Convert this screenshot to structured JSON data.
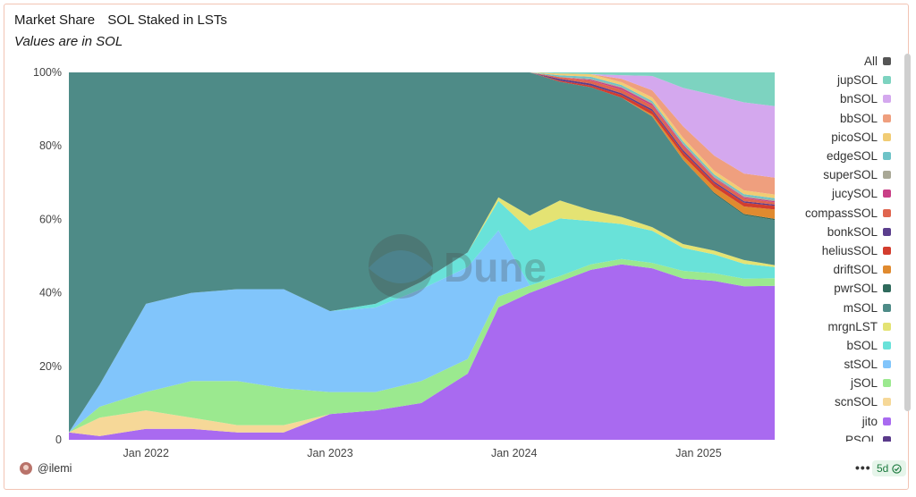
{
  "header": {
    "title": "Market Share",
    "chart_name": "SOL Staked in LSTs",
    "subtitle": "Values are in SOL"
  },
  "watermark": {
    "text": "Dune",
    "icon": "dune-logo-icon"
  },
  "footer": {
    "user": "@ilemi",
    "menu": "•••",
    "age": "5d",
    "status_icon": "check-circle-icon"
  },
  "legend": {
    "items": [
      {
        "label": "All",
        "color": "#555555"
      },
      {
        "label": "jupSOL",
        "color": "#7dd3c0"
      },
      {
        "label": "bnSOL",
        "color": "#d4a8ee"
      },
      {
        "label": "bbSOL",
        "color": "#ef9f7e"
      },
      {
        "label": "picoSOL",
        "color": "#f1cc74"
      },
      {
        "label": "edgeSOL",
        "color": "#6ec3c7"
      },
      {
        "label": "superSOL",
        "color": "#a9a896"
      },
      {
        "label": "jucySOL",
        "color": "#c93f86"
      },
      {
        "label": "compassSOL",
        "color": "#e0654f"
      },
      {
        "label": "bonkSOL",
        "color": "#5b3e8d"
      },
      {
        "label": "heliusSOL",
        "color": "#d33d2e"
      },
      {
        "label": "driftSOL",
        "color": "#e08a2f"
      },
      {
        "label": "pwrSOL",
        "color": "#2f6a5c"
      },
      {
        "label": "mSOL",
        "color": "#4e8b87"
      },
      {
        "label": "mrgnLST",
        "color": "#e4e373"
      },
      {
        "label": "bSOL",
        "color": "#69e2d9"
      },
      {
        "label": "stSOL",
        "color": "#81c5fb"
      },
      {
        "label": "jSOL",
        "color": "#9be98f"
      },
      {
        "label": "scnSOL",
        "color": "#f6d898"
      },
      {
        "label": "jito",
        "color": "#a96af0"
      },
      {
        "label": "PSOL",
        "color": "#5a3a8a"
      }
    ]
  },
  "chart_data": {
    "type": "area",
    "stacked": true,
    "normalized": true,
    "title": "Market Share",
    "subtitle": "Values are in SOL",
    "ylim": [
      0,
      100
    ],
    "y_ticks": [
      "0",
      "20%",
      "40%",
      "60%",
      "80%",
      "100%"
    ],
    "x_ticks": [
      {
        "label": "Jan 2022",
        "date": "2022-01-01"
      },
      {
        "label": "Jan 2023",
        "date": "2023-01-01"
      },
      {
        "label": "Jan 2024",
        "date": "2024-01-01"
      },
      {
        "label": "Jan 2025",
        "date": "2025-01-01"
      }
    ],
    "x": [
      "2021-08-01",
      "2021-10-01",
      "2022-01-01",
      "2022-04-01",
      "2022-07-01",
      "2022-10-01",
      "2023-01-01",
      "2023-04-01",
      "2023-07-01",
      "2023-10-01",
      "2023-12-01",
      "2024-02-01",
      "2024-04-01",
      "2024-06-01",
      "2024-08-01",
      "2024-10-01",
      "2024-12-01",
      "2025-02-01",
      "2025-04-01",
      "2025-06-01"
    ],
    "series": [
      {
        "name": "jito",
        "values": [
          2,
          1,
          3,
          3,
          2,
          2,
          7,
          8,
          10,
          18,
          36,
          40,
          44,
          47,
          50,
          48,
          42,
          42,
          41,
          41
        ]
      },
      {
        "name": "scnSOL",
        "values": [
          0,
          5,
          5,
          3,
          2,
          2,
          0,
          0,
          0,
          0,
          0,
          0,
          0,
          0,
          0,
          0,
          0,
          0,
          0,
          0
        ]
      },
      {
        "name": "jSOL",
        "values": [
          0,
          3,
          5,
          10,
          12,
          10,
          6,
          5,
          6,
          4,
          3,
          2,
          1.5,
          1.5,
          1.5,
          1.5,
          2,
          2,
          2,
          2
        ]
      },
      {
        "name": "stSOL",
        "values": [
          0,
          6,
          24,
          24,
          25,
          27,
          22,
          23,
          25,
          25,
          18,
          0,
          0,
          0,
          0,
          0,
          0,
          0,
          0,
          0
        ]
      },
      {
        "name": "bSOL",
        "values": [
          0,
          0,
          0,
          0,
          0,
          0,
          0,
          1,
          2,
          4,
          8,
          15,
          16,
          12,
          10,
          9,
          6,
          5,
          4,
          3
        ]
      },
      {
        "name": "mrgnLST",
        "values": [
          0,
          0,
          0,
          0,
          0,
          0,
          0,
          0,
          0,
          0,
          1,
          4,
          5,
          3,
          2,
          1,
          1,
          1,
          1,
          0.5
        ]
      },
      {
        "name": "mSOL",
        "values": [
          98,
          85,
          63,
          60,
          59,
          59,
          65,
          63,
          57,
          49,
          34,
          39,
          33,
          34,
          34,
          31,
          22,
          15,
          12,
          12
        ]
      },
      {
        "name": "pwrSOL",
        "values": [
          0,
          0,
          0,
          0,
          0,
          0,
          0,
          0,
          0,
          0,
          0,
          0,
          0,
          0,
          0,
          0,
          0,
          0.3,
          0.3,
          0.3
        ]
      },
      {
        "name": "driftSOL",
        "values": [
          0,
          0,
          0,
          0,
          0,
          0,
          0,
          0,
          0,
          0,
          0,
          0,
          0,
          0,
          0,
          0.5,
          1,
          1.5,
          2,
          2.5
        ]
      },
      {
        "name": "heliusSOL",
        "values": [
          0,
          0,
          0,
          0,
          0,
          0,
          0,
          0,
          0,
          0,
          0,
          0,
          0.3,
          0.5,
          0.8,
          1,
          1,
          1,
          1,
          1
        ]
      },
      {
        "name": "bonkSOL",
        "values": [
          0,
          0,
          0,
          0,
          0,
          0,
          0,
          0,
          0,
          0,
          0,
          0,
          0.5,
          0.5,
          0.5,
          0.5,
          0.5,
          0.4,
          0.4,
          0.3
        ]
      },
      {
        "name": "compassSOL",
        "values": [
          0,
          0,
          0,
          0,
          0,
          0,
          0,
          0,
          0,
          0,
          0,
          0,
          0.5,
          0.8,
          1,
          1,
          1,
          0.8,
          0.8,
          0.6
        ]
      },
      {
        "name": "jucySOL",
        "values": [
          0,
          0,
          0,
          0,
          0,
          0,
          0,
          0,
          0,
          0,
          0,
          0,
          0,
          0.3,
          0.5,
          0.5,
          0.4,
          0.3,
          0.3,
          0.3
        ]
      },
      {
        "name": "superSOL",
        "values": [
          0,
          0,
          0,
          0,
          0,
          0,
          0,
          0,
          0,
          0,
          0,
          0,
          0,
          0.3,
          0.3,
          0.3,
          0.3,
          0.3,
          0.3,
          0.3
        ]
      },
      {
        "name": "edgeSOL",
        "values": [
          0,
          0,
          0,
          0,
          0,
          0,
          0,
          0,
          0,
          0,
          0,
          0,
          0.5,
          0.5,
          0.5,
          0.5,
          0.5,
          0.5,
          0.5,
          0.5
        ]
      },
      {
        "name": "picoSOL",
        "values": [
          0,
          0,
          0,
          0,
          0,
          0,
          0,
          0,
          0,
          0,
          0,
          0,
          0.5,
          0.7,
          0.8,
          1,
          1,
          1,
          1,
          1
        ]
      },
      {
        "name": "bbSOL",
        "values": [
          0,
          0,
          0,
          0,
          0,
          0,
          0,
          0,
          0,
          0,
          0,
          0,
          0,
          0,
          1,
          2,
          3,
          4,
          4.5,
          4.5
        ]
      },
      {
        "name": "bnSOL",
        "values": [
          0,
          0,
          0,
          0,
          0,
          0,
          0,
          0,
          0,
          0,
          0,
          0,
          0,
          0,
          1,
          4,
          10,
          16,
          19,
          19
        ]
      },
      {
        "name": "jupSOL",
        "values": [
          0,
          0,
          0,
          0,
          0,
          0,
          0,
          0,
          0,
          0,
          0,
          0,
          0.3,
          0.5,
          0.8,
          1,
          4,
          6,
          8,
          9
        ]
      }
    ]
  }
}
